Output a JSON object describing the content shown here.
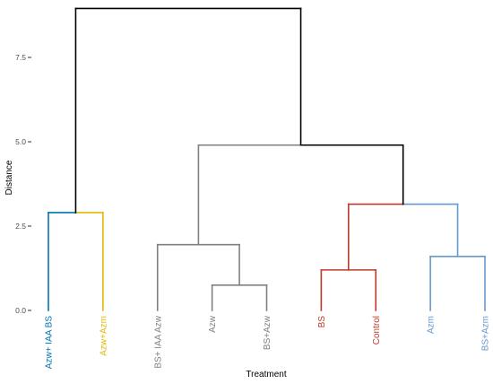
{
  "chart_data": {
    "type": "dendrogram",
    "title": "",
    "xlabel": "Treatment",
    "ylabel": "Distance",
    "ylim": [
      0,
      9
    ],
    "y_ticks": [
      {
        "value": 0,
        "label": "0.0"
      },
      {
        "value": 2.5,
        "label": "2.5"
      },
      {
        "value": 5,
        "label": "5.0"
      },
      {
        "value": 7.5,
        "label": "7.5"
      }
    ],
    "grid": false,
    "leaves": [
      {
        "label": "Azw+ IAA BS",
        "color": "#0072B2"
      },
      {
        "label": "Azw+Azm",
        "color": "#E6B800"
      },
      {
        "label": "BS+ IAA Azw",
        "color": "#808080"
      },
      {
        "label": "Azw",
        "color": "#808080"
      },
      {
        "label": "BS+Azw",
        "color": "#808080"
      },
      {
        "label": "BS",
        "color": "#C0392B"
      },
      {
        "label": "Control",
        "color": "#C0392B"
      },
      {
        "label": "Azm",
        "color": "#6699CC"
      },
      {
        "label": "BS+Azm",
        "color": "#6699CC"
      }
    ],
    "merges": [
      {
        "id": "n1",
        "children": [
          "L0",
          "L1"
        ],
        "height": 2.9,
        "color": "#0072B2",
        "color_right": "#E6B800"
      },
      {
        "id": "n2",
        "children": [
          "L3",
          "L4"
        ],
        "height": 0.75,
        "color": "#808080"
      },
      {
        "id": "n3",
        "children": [
          "L2",
          "n2"
        ],
        "height": 1.95,
        "color": "#808080"
      },
      {
        "id": "n4",
        "children": [
          "L5",
          "L6"
        ],
        "height": 1.2,
        "color": "#C0392B"
      },
      {
        "id": "n5",
        "children": [
          "L7",
          "L8"
        ],
        "height": 1.6,
        "color": "#6699CC"
      },
      {
        "id": "n6",
        "children": [
          "n4",
          "n5"
        ],
        "height": 3.15,
        "color": "#C0392B",
        "color_right": "#6699CC"
      },
      {
        "id": "n7",
        "children": [
          "n3",
          "n6"
        ],
        "height": 4.9,
        "color": "#808080",
        "color_right": "#000000"
      },
      {
        "id": "n8",
        "children": [
          "n1",
          "n7"
        ],
        "height": 8.95,
        "color": "#000000"
      }
    ]
  }
}
